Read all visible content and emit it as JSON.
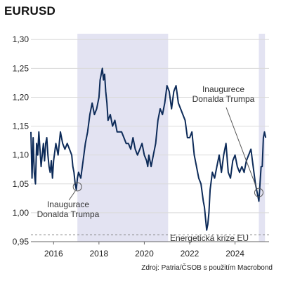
{
  "chart_data": {
    "type": "line",
    "title": "EURUSD",
    "xlabel": "",
    "ylabel": "",
    "xlim": [
      2015.0,
      2025.5
    ],
    "ylim": [
      0.95,
      1.31
    ],
    "x_ticks": [
      2016,
      2018,
      2020,
      2022,
      2024
    ],
    "x_tick_labels": [
      "2016",
      "2018",
      "2020",
      "2022",
      "2024"
    ],
    "y_ticks": [
      0.95,
      1.0,
      1.05,
      1.1,
      1.15,
      1.2,
      1.25,
      1.3
    ],
    "y_tick_labels": [
      "0,95",
      "1,00",
      "1,05",
      "1,10",
      "1,15",
      "1,20",
      "1,25",
      "1,30"
    ],
    "grid": true,
    "shaded_periods": [
      {
        "start": 2017.05,
        "end": 2021.05
      },
      {
        "start": 2025.05,
        "end": 2025.32
      }
    ],
    "reference_lines": [
      {
        "y": 0.962,
        "style": "dashed",
        "label": "Energetická krize EU"
      }
    ],
    "annotations": [
      {
        "lines": [
          "Inaugurace",
          "Donalda Trumpa"
        ],
        "x": 2017.05,
        "y": 1.045
      },
      {
        "lines": [
          "Inaugurece",
          "Donalda Trumpa"
        ],
        "x": 2025.05,
        "y": 1.035
      }
    ],
    "series": [
      {
        "x": [
          2015.0,
          2015.05,
          2015.1,
          2015.15,
          2015.2,
          2015.25,
          2015.3,
          2015.35,
          2015.4,
          2015.45,
          2015.5,
          2015.55,
          2015.6,
          2015.65,
          2015.7,
          2015.75,
          2015.8,
          2015.85,
          2015.9,
          2015.95,
          2016.0,
          2016.1,
          2016.2,
          2016.3,
          2016.4,
          2016.5,
          2016.6,
          2016.7,
          2016.8,
          2016.85,
          2016.9,
          2016.95,
          2017.0,
          2017.05,
          2017.1,
          2017.2,
          2017.3,
          2017.4,
          2017.5,
          2017.6,
          2017.7,
          2017.8,
          2017.9,
          2018.0,
          2018.05,
          2018.1,
          2018.15,
          2018.2,
          2018.25,
          2018.3,
          2018.35,
          2018.4,
          2018.5,
          2018.6,
          2018.7,
          2018.8,
          2018.9,
          2019.0,
          2019.1,
          2019.2,
          2019.3,
          2019.4,
          2019.5,
          2019.6,
          2019.7,
          2019.8,
          2019.9,
          2020.0,
          2020.1,
          2020.15,
          2020.2,
          2020.25,
          2020.3,
          2020.4,
          2020.5,
          2020.6,
          2020.7,
          2020.8,
          2020.9,
          2021.0,
          2021.1,
          2021.2,
          2021.3,
          2021.4,
          2021.5,
          2021.6,
          2021.7,
          2021.8,
          2021.9,
          2022.0,
          2022.1,
          2022.2,
          2022.3,
          2022.4,
          2022.5,
          2022.6,
          2022.65,
          2022.7,
          2022.75,
          2022.8,
          2022.85,
          2022.9,
          2023.0,
          2023.1,
          2023.2,
          2023.3,
          2023.4,
          2023.5,
          2023.6,
          2023.7,
          2023.8,
          2023.9,
          2024.0,
          2024.1,
          2024.2,
          2024.3,
          2024.4,
          2024.5,
          2024.6,
          2024.7,
          2024.8,
          2024.9,
          2025.0,
          2025.05,
          2025.1,
          2025.15,
          2025.2,
          2025.25,
          2025.3,
          2025.35
        ],
        "values": [
          1.14,
          1.06,
          1.13,
          1.07,
          1.05,
          1.12,
          1.1,
          1.14,
          1.11,
          1.08,
          1.1,
          1.12,
          1.09,
          1.12,
          1.13,
          1.1,
          1.08,
          1.07,
          1.09,
          1.06,
          1.09,
          1.12,
          1.1,
          1.14,
          1.12,
          1.11,
          1.12,
          1.11,
          1.1,
          1.08,
          1.07,
          1.05,
          1.04,
          1.06,
          1.07,
          1.06,
          1.09,
          1.12,
          1.14,
          1.17,
          1.19,
          1.17,
          1.18,
          1.2,
          1.23,
          1.24,
          1.25,
          1.23,
          1.24,
          1.21,
          1.19,
          1.16,
          1.17,
          1.15,
          1.16,
          1.14,
          1.14,
          1.14,
          1.13,
          1.12,
          1.12,
          1.11,
          1.13,
          1.11,
          1.1,
          1.11,
          1.12,
          1.1,
          1.09,
          1.08,
          1.1,
          1.09,
          1.08,
          1.1,
          1.12,
          1.16,
          1.18,
          1.17,
          1.19,
          1.22,
          1.21,
          1.18,
          1.21,
          1.22,
          1.19,
          1.18,
          1.17,
          1.16,
          1.13,
          1.13,
          1.14,
          1.1,
          1.08,
          1.06,
          1.05,
          1.02,
          1.01,
          0.99,
          0.97,
          0.98,
          1.0,
          1.04,
          1.07,
          1.06,
          1.08,
          1.1,
          1.07,
          1.1,
          1.12,
          1.07,
          1.06,
          1.09,
          1.1,
          1.08,
          1.07,
          1.08,
          1.07,
          1.09,
          1.1,
          1.11,
          1.08,
          1.05,
          1.03,
          1.02,
          1.05,
          1.08,
          1.08,
          1.13,
          1.14,
          1.13
        ]
      }
    ]
  },
  "source_note": "Zdroj: Patria/ČSOB s použitím Macrobond",
  "colors": {
    "line": "#0d2b59",
    "shade": "#e3e3f2",
    "grid": "#dadada",
    "axis": "#666666",
    "dashed": "#888888"
  }
}
